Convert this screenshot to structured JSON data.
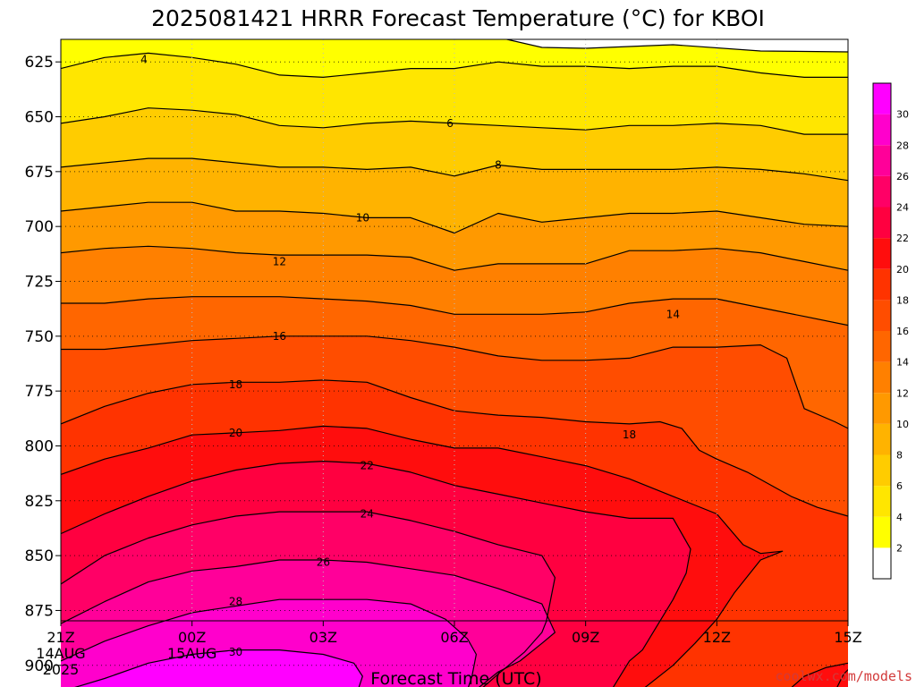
{
  "chart_data": {
    "type": "heatmap",
    "subtype": "filled-contour time-height cross section",
    "title": "2025081421 HRRR Forecast Temperature (°C) for KBOI",
    "xlabel": "Forecast Time (UTC)",
    "ylabel": "",
    "x_ticks": [
      {
        "hour": 0,
        "label": "21Z",
        "sub": [
          "14AUG",
          "2025"
        ]
      },
      {
        "hour": 3,
        "label": "00Z",
        "sub": [
          "15AUG"
        ]
      },
      {
        "hour": 6,
        "label": "03Z",
        "sub": []
      },
      {
        "hour": 9,
        "label": "06Z",
        "sub": []
      },
      {
        "hour": 12,
        "label": "09Z",
        "sub": []
      },
      {
        "hour": 15,
        "label": "12Z",
        "sub": []
      },
      {
        "hour": 18,
        "label": "15Z",
        "sub": []
      }
    ],
    "xlim": [
      0,
      18
    ],
    "y_ticks": [
      625,
      650,
      675,
      700,
      725,
      750,
      775,
      800,
      825,
      850,
      875,
      900
    ],
    "ylim": [
      610,
      912
    ],
    "y_direction": "pressure increasing downward (hPa)",
    "ground_level_hPa": 912,
    "grid": true,
    "colorbar": {
      "position": "right",
      "levels": [
        2,
        4,
        6,
        8,
        10,
        12,
        14,
        16,
        18,
        20,
        22,
        24,
        26,
        28,
        30
      ],
      "colors": [
        "#ffffff",
        "#ffff00",
        "#ffe600",
        "#ffcc00",
        "#ffb300",
        "#ff9900",
        "#ff8000",
        "#ff6600",
        "#ff4d00",
        "#ff3300",
        "#ff0d0d",
        "#ff0040",
        "#ff0066",
        "#ff0099",
        "#ff00cc",
        "#ff00ff"
      ]
    },
    "contour_labels": [
      {
        "value": 4,
        "text": "4",
        "hour": 1.9,
        "p": 624
      },
      {
        "value": 6,
        "text": "6",
        "hour": 8.9,
        "p": 653
      },
      {
        "value": 8,
        "text": "8",
        "hour": 10.0,
        "p": 672
      },
      {
        "value": 10,
        "text": "10",
        "hour": 6.9,
        "p": 696
      },
      {
        "value": 12,
        "text": "12",
        "hour": 5.0,
        "p": 716
      },
      {
        "value": 14,
        "text": "14",
        "hour": 14.0,
        "p": 740
      },
      {
        "value": 16,
        "text": "16",
        "hour": 5.0,
        "p": 750
      },
      {
        "value": 18,
        "text": "18",
        "hour": 4.0,
        "p": 772
      },
      {
        "value": 18,
        "text": "18",
        "hour": 13.0,
        "p": 795
      },
      {
        "value": 20,
        "text": "20",
        "hour": 4.0,
        "p": 794
      },
      {
        "value": 22,
        "text": "22",
        "hour": 7.0,
        "p": 809
      },
      {
        "value": 24,
        "text": "24",
        "hour": 7.0,
        "p": 831
      },
      {
        "value": 26,
        "text": "26",
        "hour": 6.0,
        "p": 853
      },
      {
        "value": 28,
        "text": "28",
        "hour": 4.0,
        "p": 871
      },
      {
        "value": 30,
        "text": "30",
        "hour": 4.0,
        "p": 894
      }
    ],
    "isotherms": [
      {
        "value": 4,
        "points": [
          [
            0,
            628
          ],
          [
            1,
            623
          ],
          [
            2,
            621
          ],
          [
            3,
            623
          ],
          [
            4,
            626
          ],
          [
            5,
            631
          ],
          [
            6,
            632
          ],
          [
            7,
            630
          ],
          [
            8,
            628
          ],
          [
            9,
            628
          ],
          [
            10,
            625
          ],
          [
            11,
            627
          ],
          [
            12,
            627
          ],
          [
            13,
            628
          ],
          [
            14,
            627
          ],
          [
            15,
            627
          ],
          [
            16,
            630
          ],
          [
            17,
            632
          ],
          [
            18,
            632
          ]
        ]
      },
      {
        "value": 6,
        "points": [
          [
            0,
            653
          ],
          [
            1,
            650
          ],
          [
            2,
            646
          ],
          [
            3,
            647
          ],
          [
            4,
            649
          ],
          [
            5,
            654
          ],
          [
            6,
            655
          ],
          [
            7,
            653
          ],
          [
            8,
            652
          ],
          [
            9,
            653
          ],
          [
            10,
            654
          ],
          [
            11,
            655
          ],
          [
            12,
            656
          ],
          [
            13,
            654
          ],
          [
            14,
            654
          ],
          [
            15,
            653
          ],
          [
            16,
            654
          ],
          [
            17,
            658
          ],
          [
            18,
            658
          ]
        ]
      },
      {
        "value": 8,
        "points": [
          [
            0,
            673
          ],
          [
            1,
            671
          ],
          [
            2,
            669
          ],
          [
            3,
            669
          ],
          [
            4,
            671
          ],
          [
            5,
            673
          ],
          [
            6,
            673
          ],
          [
            7,
            674
          ],
          [
            8,
            673
          ],
          [
            9,
            677
          ],
          [
            10,
            672
          ],
          [
            11,
            674
          ],
          [
            12,
            674
          ],
          [
            13,
            674
          ],
          [
            14,
            674
          ],
          [
            15,
            673
          ],
          [
            16,
            674
          ],
          [
            17,
            676
          ],
          [
            18,
            679
          ]
        ]
      },
      {
        "value": 10,
        "points": [
          [
            0,
            693
          ],
          [
            1,
            691
          ],
          [
            2,
            689
          ],
          [
            3,
            689
          ],
          [
            4,
            693
          ],
          [
            5,
            693
          ],
          [
            6,
            694
          ],
          [
            7,
            696
          ],
          [
            8,
            696
          ],
          [
            9,
            703
          ],
          [
            10,
            694
          ],
          [
            11,
            698
          ],
          [
            12,
            696
          ],
          [
            13,
            694
          ],
          [
            14,
            694
          ],
          [
            15,
            693
          ],
          [
            16,
            696
          ],
          [
            17,
            699
          ],
          [
            18,
            700
          ]
        ]
      },
      {
        "value": 12,
        "points": [
          [
            0,
            712
          ],
          [
            1,
            710
          ],
          [
            2,
            709
          ],
          [
            3,
            710
          ],
          [
            4,
            712
          ],
          [
            5,
            713
          ],
          [
            6,
            713
          ],
          [
            7,
            713
          ],
          [
            8,
            714
          ],
          [
            9,
            720
          ],
          [
            10,
            717
          ],
          [
            11,
            717
          ],
          [
            12,
            717
          ],
          [
            13,
            711
          ],
          [
            14,
            711
          ],
          [
            15,
            710
          ],
          [
            16,
            712
          ],
          [
            17,
            716
          ],
          [
            18,
            720
          ]
        ]
      },
      {
        "value": 14,
        "points": [
          [
            0,
            735
          ],
          [
            1,
            735
          ],
          [
            2,
            733
          ],
          [
            3,
            732
          ],
          [
            4,
            732
          ],
          [
            5,
            732
          ],
          [
            6,
            733
          ],
          [
            7,
            734
          ],
          [
            8,
            736
          ],
          [
            9,
            740
          ],
          [
            10,
            740
          ],
          [
            11,
            740
          ],
          [
            12,
            739
          ],
          [
            13,
            735
          ],
          [
            14,
            733
          ],
          [
            15,
            733
          ],
          [
            16,
            737
          ],
          [
            17,
            741
          ],
          [
            18,
            745
          ]
        ]
      },
      {
        "value": 16,
        "points": [
          [
            0,
            756
          ],
          [
            1,
            756
          ],
          [
            2,
            754
          ],
          [
            3,
            752
          ],
          [
            4,
            751
          ],
          [
            5,
            750
          ],
          [
            6,
            750
          ],
          [
            7,
            750
          ],
          [
            8,
            752
          ],
          [
            9,
            755
          ],
          [
            10,
            759
          ],
          [
            11,
            761
          ],
          [
            12,
            761
          ],
          [
            13,
            760
          ],
          [
            14,
            755
          ],
          [
            15,
            755
          ],
          [
            16,
            754
          ],
          [
            16.6,
            760
          ],
          [
            17,
            783
          ],
          [
            17.7,
            789
          ],
          [
            18,
            792
          ]
        ]
      },
      {
        "value": 18,
        "points": [
          [
            0,
            790
          ],
          [
            1,
            782
          ],
          [
            2,
            776
          ],
          [
            3,
            772
          ],
          [
            4,
            771
          ],
          [
            5,
            771
          ],
          [
            6,
            770
          ],
          [
            7,
            771
          ],
          [
            8,
            778
          ],
          [
            9,
            784
          ],
          [
            10,
            786
          ],
          [
            11,
            787
          ],
          [
            12,
            789
          ],
          [
            13,
            790
          ],
          [
            13.7,
            789
          ],
          [
            14.2,
            792
          ],
          [
            14.6,
            802
          ],
          [
            15,
            806
          ],
          [
            15.7,
            812
          ],
          [
            16.7,
            823
          ],
          [
            17.3,
            828
          ],
          [
            18,
            832
          ]
        ]
      },
      {
        "value": 20,
        "points": [
          [
            0,
            813
          ],
          [
            1,
            806
          ],
          [
            2,
            801
          ],
          [
            3,
            795
          ],
          [
            4,
            794
          ],
          [
            5,
            793
          ],
          [
            6,
            791
          ],
          [
            7,
            792
          ],
          [
            8,
            797
          ],
          [
            9,
            801
          ],
          [
            10,
            801
          ],
          [
            11,
            805
          ],
          [
            12,
            809
          ],
          [
            13,
            815
          ],
          [
            14,
            823
          ],
          [
            15,
            831
          ],
          [
            15.6,
            845
          ],
          [
            16,
            849
          ],
          [
            16.5,
            848
          ],
          [
            16,
            852
          ],
          [
            15.4,
            867
          ],
          [
            15,
            879
          ],
          [
            14.5,
            890
          ],
          [
            14,
            900
          ],
          [
            13.3,
            911
          ]
        ]
      },
      {
        "value": 22,
        "points": [
          [
            0,
            840
          ],
          [
            1,
            831
          ],
          [
            2,
            823
          ],
          [
            3,
            816
          ],
          [
            4,
            811
          ],
          [
            5,
            808
          ],
          [
            6,
            807
          ],
          [
            7,
            808
          ],
          [
            8,
            812
          ],
          [
            9,
            818
          ],
          [
            10,
            822
          ],
          [
            11,
            826
          ],
          [
            12,
            830
          ],
          [
            13,
            833
          ],
          [
            14,
            833
          ],
          [
            14.4,
            847
          ],
          [
            14.3,
            858
          ],
          [
            14,
            870
          ],
          [
            13.3,
            893
          ],
          [
            13,
            898
          ],
          [
            12.6,
            911
          ]
        ]
      },
      {
        "value": 24,
        "points": [
          [
            0,
            863
          ],
          [
            1,
            850
          ],
          [
            2,
            842
          ],
          [
            3,
            836
          ],
          [
            4,
            832
          ],
          [
            5,
            830
          ],
          [
            6,
            830
          ],
          [
            7,
            830
          ],
          [
            8,
            834
          ],
          [
            9,
            839
          ],
          [
            10,
            845
          ],
          [
            11,
            850
          ],
          [
            11.3,
            860
          ],
          [
            11.1,
            880
          ],
          [
            11,
            885
          ],
          [
            10.6,
            894
          ],
          [
            10,
            904
          ],
          [
            9.6,
            911
          ]
        ]
      },
      {
        "value": 26,
        "points": [
          [
            0,
            881
          ],
          [
            1,
            871
          ],
          [
            2,
            862
          ],
          [
            3,
            857
          ],
          [
            4,
            855
          ],
          [
            5,
            852
          ],
          [
            6,
            852
          ],
          [
            7,
            853
          ],
          [
            8,
            856
          ],
          [
            9,
            859
          ],
          [
            10,
            865
          ],
          [
            11,
            872
          ],
          [
            11.3,
            885
          ],
          [
            11,
            890
          ],
          [
            10.5,
            898
          ],
          [
            10,
            903
          ],
          [
            9.5,
            911
          ]
        ]
      },
      {
        "value": 28,
        "points": [
          [
            0,
            898
          ],
          [
            1,
            889
          ],
          [
            2,
            882
          ],
          [
            3,
            876
          ],
          [
            4,
            873
          ],
          [
            5,
            870
          ],
          [
            6,
            870
          ],
          [
            7,
            870
          ],
          [
            8,
            872
          ],
          [
            8.8,
            879
          ],
          [
            9.3,
            888
          ],
          [
            9.5,
            895
          ],
          [
            9.4,
            905
          ],
          [
            9.3,
            911
          ]
        ]
      },
      {
        "value": 30,
        "points": [
          [
            0,
            912
          ],
          [
            1,
            906
          ],
          [
            2,
            899
          ],
          [
            3,
            895
          ],
          [
            4,
            893
          ],
          [
            5,
            893
          ],
          [
            6,
            895
          ],
          [
            6.7,
            899
          ],
          [
            6.9,
            905
          ],
          [
            6.8,
            911
          ]
        ]
      }
    ]
  },
  "credit": "coolwx.com/models"
}
